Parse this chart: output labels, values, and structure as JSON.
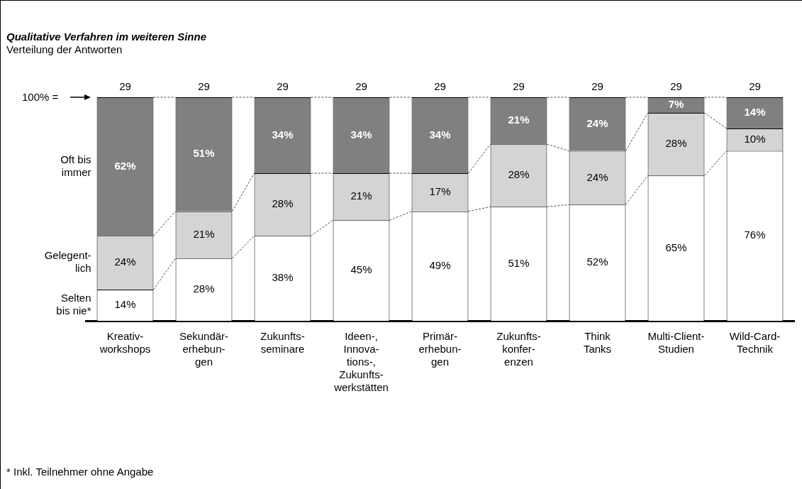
{
  "chart_data": {
    "type": "bar",
    "stacked": true,
    "title": "Qualitative Verfahren im weiteren Sinne",
    "subtitle": "Verteilung der Antworten",
    "categories": [
      "Kreativ-\nworkshops",
      "Sekundär-\nerhebun-\ngen",
      "Zukunfts-\nseminare",
      "Ideen-,\nInnova-\ntions-,\nZukunfts-\nwerkstätten",
      "Primär-\nerhebun-\ngen",
      "Zukunfts-\nkonfer-\nenzen",
      "Think\nTanks",
      "Multi-Client-\nStudien",
      "Wild-Card-\nTechnik"
    ],
    "series": [
      {
        "name": "Selten\nbis nie*",
        "color": "#ffffff",
        "values": [
          14,
          28,
          38,
          45,
          49,
          51,
          52,
          65,
          76
        ],
        "value_labels": [
          "14%",
          "28%",
          "38%",
          "45%",
          "49%",
          "51%",
          "52%",
          "65%",
          "76%"
        ]
      },
      {
        "name": "Gelegent-\nlich",
        "color": "#d4d4d4",
        "values": [
          24,
          21,
          28,
          21,
          17,
          28,
          24,
          28,
          10
        ],
        "value_labels": [
          "24%",
          "21%",
          "28%",
          "21%",
          "17%",
          "28%",
          "24%",
          "28%",
          "10%"
        ]
      },
      {
        "name": "Oft bis\nimmer",
        "color": "#808080",
        "values": [
          62,
          51,
          34,
          34,
          34,
          21,
          24,
          7,
          14
        ],
        "value_labels": [
          "62%",
          "51%",
          "34%",
          "34%",
          "34%",
          "21%",
          "24%",
          "7%",
          "14%"
        ]
      }
    ],
    "tick_labels": "x",
    "grid": false,
    "legend": false,
    "annotations": [
      "100% =",
      {
        "text": "29",
        "x": "Kreativ-\nworkshops",
        "y": 100
      },
      {
        "text": "29",
        "x": "Sekundär-\nerhebun-\ngen",
        "y": 100
      },
      {
        "text": "29",
        "x": "Zukunfts-\nseminare",
        "y": 100
      },
      {
        "text": "29",
        "x": "Ideen-,\nInnova-\ntions-,\nZukunfts-\nwerkstätten",
        "y": 100
      },
      {
        "text": "29",
        "x": "Primär-\nerhebun-\ngen",
        "y": 100
      },
      {
        "text": "29",
        "x": "Zukunfts-\nkonfer-\nenzen",
        "y": 100
      },
      {
        "text": "29",
        "x": "Think\nTanks",
        "y": 100
      },
      {
        "text": "29",
        "x": "Multi-Client-\nStudien",
        "y": 100
      },
      {
        "text": "29",
        "x": "Wild-Card-\nTechnik",
        "y": 100
      },
      "* Inkl. Teilnehmer ohne Angabe"
    ]
  }
}
